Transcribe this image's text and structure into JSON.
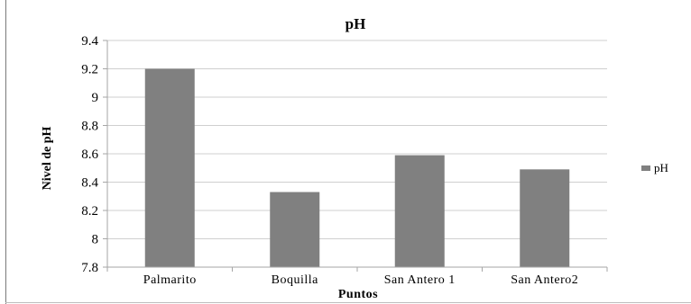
{
  "chart_data": {
    "type": "bar",
    "title": "pH",
    "xlabel": "Puntos",
    "ylabel": "Nivel de pH",
    "categories": [
      "Palmarito",
      "Boquilla",
      "San Antero 1",
      "San Antero2"
    ],
    "series": [
      {
        "name": "pH",
        "values": [
          9.2,
          8.33,
          8.59,
          8.49
        ],
        "color": "#808080"
      }
    ],
    "ylim": [
      7.8,
      9.4
    ],
    "yticks": [
      "7.8",
      "8",
      "8.2",
      "8.4",
      "8.6",
      "8.8",
      "9",
      "9.2",
      "9.4"
    ],
    "grid": true,
    "legend_position": "right"
  }
}
